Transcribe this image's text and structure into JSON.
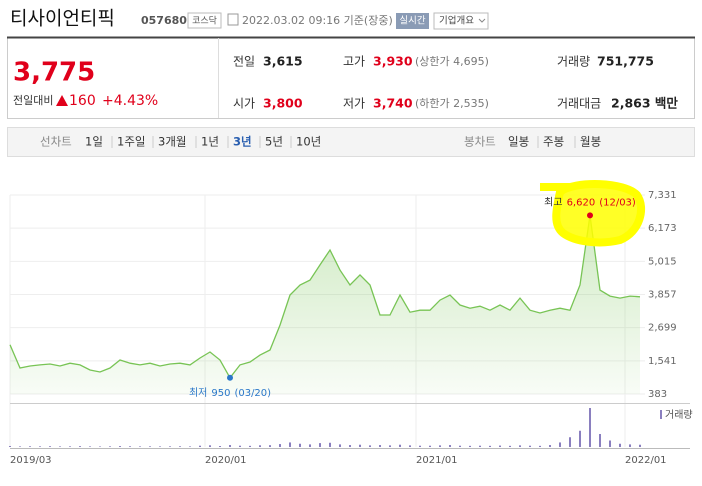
{
  "header": {
    "name": "티사이언티픽",
    "code": "057680",
    "market": "코스닥",
    "datetime": "2022.03.02 09:16 기준(장중)",
    "realtime": "실시간",
    "overview": "기업개요"
  },
  "quote": {
    "price": "3,775",
    "change_label": "전일대비",
    "change": "160",
    "change_rate": "+4.43%"
  },
  "stats": [
    [
      {
        "label": "전일",
        "value": "3,615"
      },
      {
        "label": "고가",
        "value": "3,930",
        "limit": "(상한가 4,695)"
      },
      {
        "label": "거래량",
        "value": "751,775"
      }
    ],
    [
      {
        "label": "시가",
        "value": "3,800"
      },
      {
        "label": "저가",
        "value": "3,740",
        "limit": "(하한가 2,535)"
      },
      {
        "label": "거래대금",
        "value": "2,863 백만"
      }
    ]
  ],
  "tabs": {
    "line_label": "선차트",
    "periods": [
      "1일",
      "1주일",
      "3개월",
      "1년",
      "3년",
      "5년",
      "10년"
    ],
    "selected": 4,
    "candle_label": "봉차트",
    "candles": [
      "일봉",
      "주봉",
      "월봉"
    ]
  },
  "chart_data": {
    "type": "line",
    "color": "#78c455",
    "values": [
      2100,
      1290,
      1360,
      1400,
      1430,
      1360,
      1460,
      1400,
      1220,
      1150,
      1290,
      1570,
      1460,
      1400,
      1460,
      1360,
      1430,
      1460,
      1400,
      1640,
      1850,
      1570,
      950,
      1400,
      1500,
      1740,
      1920,
      2790,
      3840,
      4190,
      4360,
      4890,
      5410,
      4710,
      4190,
      4540,
      4190,
      3140,
      3140,
      3840,
      3240,
      3310,
      3310,
      3660,
      3840,
      3490,
      3380,
      3450,
      3310,
      3490,
      3310,
      3730,
      3310,
      3210,
      3310,
      3380,
      3310,
      4190,
      6620,
      4010,
      3800,
      3730,
      3800,
      3775
    ],
    "xlim": [
      0,
      63
    ],
    "xticks": [
      {
        "value": 0,
        "label": "2019/03"
      },
      {
        "value": 19.5,
        "label": "2020/01"
      },
      {
        "value": 40.6,
        "label": "2021/01"
      },
      {
        "value": 61.5,
        "label": "2022/01"
      }
    ],
    "ylim": [
      383,
      7331
    ],
    "yticks": [
      383,
      {
        "value": 1541,
        "label": "1,541"
      },
      {
        "value": 2699,
        "label": "2,699"
      },
      {
        "value": 3857,
        "label": "3,857"
      },
      {
        "value": 5015,
        "label": "5,015"
      },
      {
        "value": 6173,
        "label": "6,173"
      },
      {
        "value": 7331,
        "label": "7,331"
      }
    ],
    "grid": true,
    "max_annotation": {
      "label": "최고",
      "value": "6,620",
      "date": "(12/03)",
      "color": "#e0001b"
    },
    "min_annotation": {
      "label": "최저",
      "value": "950",
      "date": "(03/20)",
      "color": "#2a77c9"
    },
    "volume": {
      "name": "거래량",
      "color": "#8a7fbf",
      "values": [
        150000,
        90000,
        110000,
        100000,
        120000,
        90000,
        100000,
        130000,
        90000,
        80000,
        100000,
        140000,
        110000,
        90000,
        100000,
        90000,
        100000,
        110000,
        90000,
        200000,
        260000,
        150000,
        300000,
        200000,
        180000,
        260000,
        280000,
        450000,
        700000,
        500000,
        400000,
        600000,
        650000,
        400000,
        300000,
        350000,
        250000,
        300000,
        250000,
        350000,
        250000,
        200000,
        200000,
        250000,
        300000,
        200000,
        180000,
        200000,
        180000,
        220000,
        180000,
        250000,
        200000,
        180000,
        300000,
        700000,
        1500000,
        2500000,
        6000000,
        2000000,
        1000000,
        500000,
        400000,
        350000
      ]
    }
  }
}
